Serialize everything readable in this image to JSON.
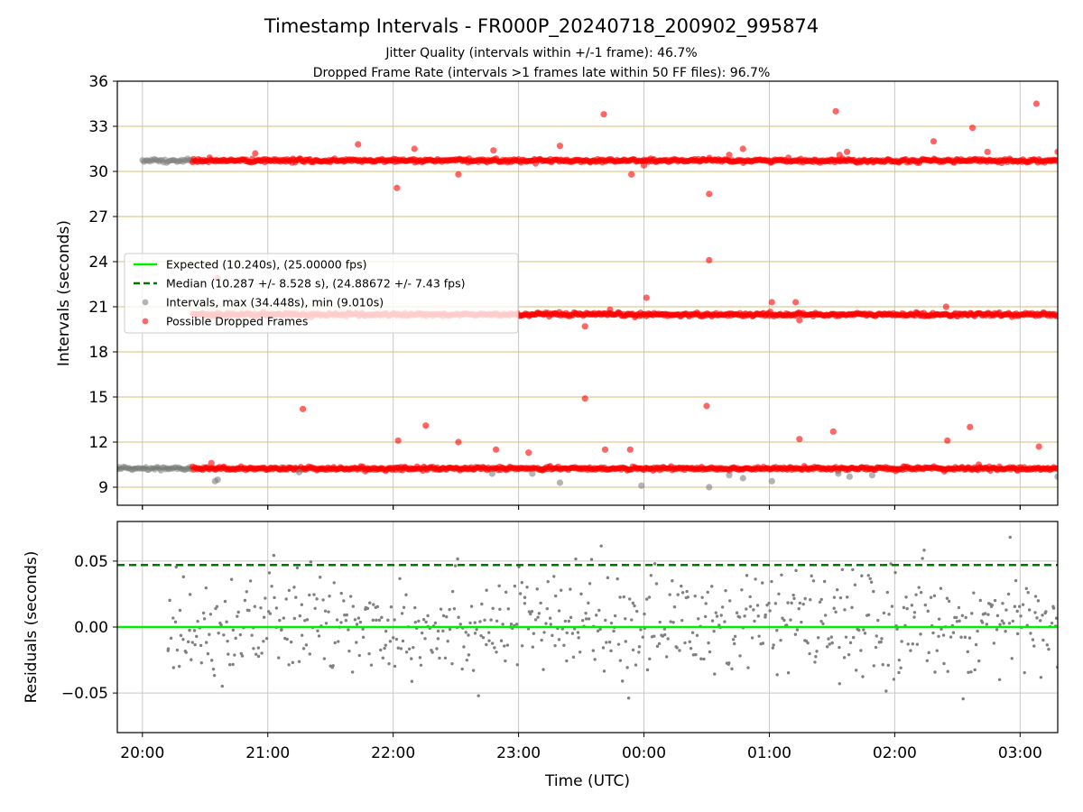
{
  "chart_data": {
    "type": "scatter",
    "title": "Timestamp Intervals - FR000P_20240718_200902_995874",
    "subtitles": [
      "Jitter Quality (intervals within +/-1 frame): 46.7%",
      "Dropped Frame Rate (intervals >1 frames late within 50 FF files): 96.7%"
    ],
    "xlabel": "Time (UTC)",
    "x_ticks": [
      "20:00",
      "21:00",
      "22:00",
      "23:00",
      "00:00",
      "01:00",
      "02:00",
      "03:00"
    ],
    "xlim_hours": [
      -0.2,
      7.3
    ],
    "grid": true,
    "colors": {
      "expected": "#00ee00",
      "median": "#007700",
      "intervals": "#808080",
      "dropped": "#ff0000",
      "hgrid_top": "#d4bf74",
      "grid": "#c8c8c8"
    },
    "top_panel": {
      "ylabel": "Intervals (seconds)",
      "ylim": [
        7.8,
        36
      ],
      "y_ticks": [
        9,
        12,
        15,
        18,
        21,
        24,
        27,
        30,
        33,
        36
      ],
      "expected": 10.24,
      "median": 10.287,
      "legend_position": "center-left",
      "legend": [
        {
          "label": "Expected (10.240s), (25.00000 fps)",
          "style": "solid-line",
          "color": "#00ee00"
        },
        {
          "label": "Median (10.287 +/- 8.528 s), (24.88672 +/- 7.43 fps)",
          "style": "dashed-line",
          "color": "#007700"
        },
        {
          "label": "Intervals, max (34.448s), min (9.010s)",
          "style": "marker",
          "color": "#808080"
        },
        {
          "label": "Possible Dropped Frames",
          "style": "marker",
          "color": "#ff0000"
        }
      ],
      "bands": [
        {
          "name": "Intervals",
          "level": 10.24,
          "x_start": -0.2,
          "x_end": 0.4,
          "kind": "interval"
        },
        {
          "name": "Possible Dropped Frames",
          "level": 10.24,
          "x_start": 0.4,
          "x_end": 7.3,
          "kind": "dropped"
        },
        {
          "name": "Intervals",
          "level": 30.72,
          "x_start": 0.0,
          "x_end": 0.4,
          "kind": "interval"
        },
        {
          "name": "Possible Dropped Frames",
          "level": 30.72,
          "x_start": 0.4,
          "x_end": 7.3,
          "kind": "dropped"
        },
        {
          "name": "Possible Dropped Frames",
          "level": 20.48,
          "x_start": 0.4,
          "x_end": 7.3,
          "kind": "dropped"
        }
      ],
      "outliers_dropped": [
        [
          0.55,
          10.6
        ],
        [
          0.6,
          22.9
        ],
        [
          0.9,
          31.2
        ],
        [
          1.28,
          14.2
        ],
        [
          1.72,
          31.8
        ],
        [
          2.03,
          28.9
        ],
        [
          2.04,
          12.1
        ],
        [
          2.17,
          31.5
        ],
        [
          2.26,
          13.1
        ],
        [
          2.52,
          12.0
        ],
        [
          2.52,
          29.8
        ],
        [
          2.8,
          31.4
        ],
        [
          2.82,
          11.5
        ],
        [
          3.08,
          11.3
        ],
        [
          3.33,
          31.7
        ],
        [
          3.53,
          19.7
        ],
        [
          3.53,
          14.9
        ],
        [
          3.68,
          33.8
        ],
        [
          3.69,
          11.5
        ],
        [
          3.73,
          20.8
        ],
        [
          3.89,
          11.5
        ],
        [
          3.9,
          29.8
        ],
        [
          4.0,
          30.4
        ],
        [
          4.02,
          21.6
        ],
        [
          4.5,
          14.4
        ],
        [
          4.52,
          28.5
        ],
        [
          4.52,
          24.1
        ],
        [
          4.68,
          31.1
        ],
        [
          4.79,
          31.5
        ],
        [
          5.02,
          21.3
        ],
        [
          5.21,
          21.3
        ],
        [
          5.24,
          20.1
        ],
        [
          5.24,
          12.2
        ],
        [
          5.51,
          12.7
        ],
        [
          5.53,
          34.0
        ],
        [
          5.56,
          31.1
        ],
        [
          5.62,
          31.3
        ],
        [
          6.31,
          32.0
        ],
        [
          6.41,
          21.0
        ],
        [
          6.42,
          12.1
        ],
        [
          6.6,
          13.0
        ],
        [
          6.62,
          32.9
        ],
        [
          6.67,
          10.5
        ],
        [
          6.74,
          31.3
        ],
        [
          7.13,
          34.5
        ],
        [
          7.15,
          11.7
        ],
        [
          7.3,
          31.3
        ]
      ],
      "outliers_intervals": [
        [
          0.58,
          9.4
        ],
        [
          0.6,
          9.5
        ],
        [
          1.25,
          10.0
        ],
        [
          2.79,
          9.9
        ],
        [
          3.11,
          9.9
        ],
        [
          3.33,
          9.3
        ],
        [
          3.98,
          9.1
        ],
        [
          4.52,
          9.0
        ],
        [
          4.68,
          9.8
        ],
        [
          4.79,
          9.6
        ],
        [
          5.02,
          9.4
        ],
        [
          5.55,
          9.9
        ],
        [
          5.64,
          9.7
        ],
        [
          5.82,
          9.8
        ],
        [
          7.3,
          9.7
        ]
      ]
    },
    "bottom_panel": {
      "ylabel": "Residuals (seconds)",
      "ylim": [
        -0.08,
        0.08
      ],
      "y_ticks": [
        0.05,
        0.0,
        -0.05
      ],
      "y_tick_labels": [
        "0.05",
        "0.00",
        "−0.05"
      ],
      "expected": 0.0,
      "median_dashed": 0.047,
      "series": "Residuals",
      "residual_spread": 0.02,
      "residual_count": 700,
      "residual_seed": 17
    }
  }
}
